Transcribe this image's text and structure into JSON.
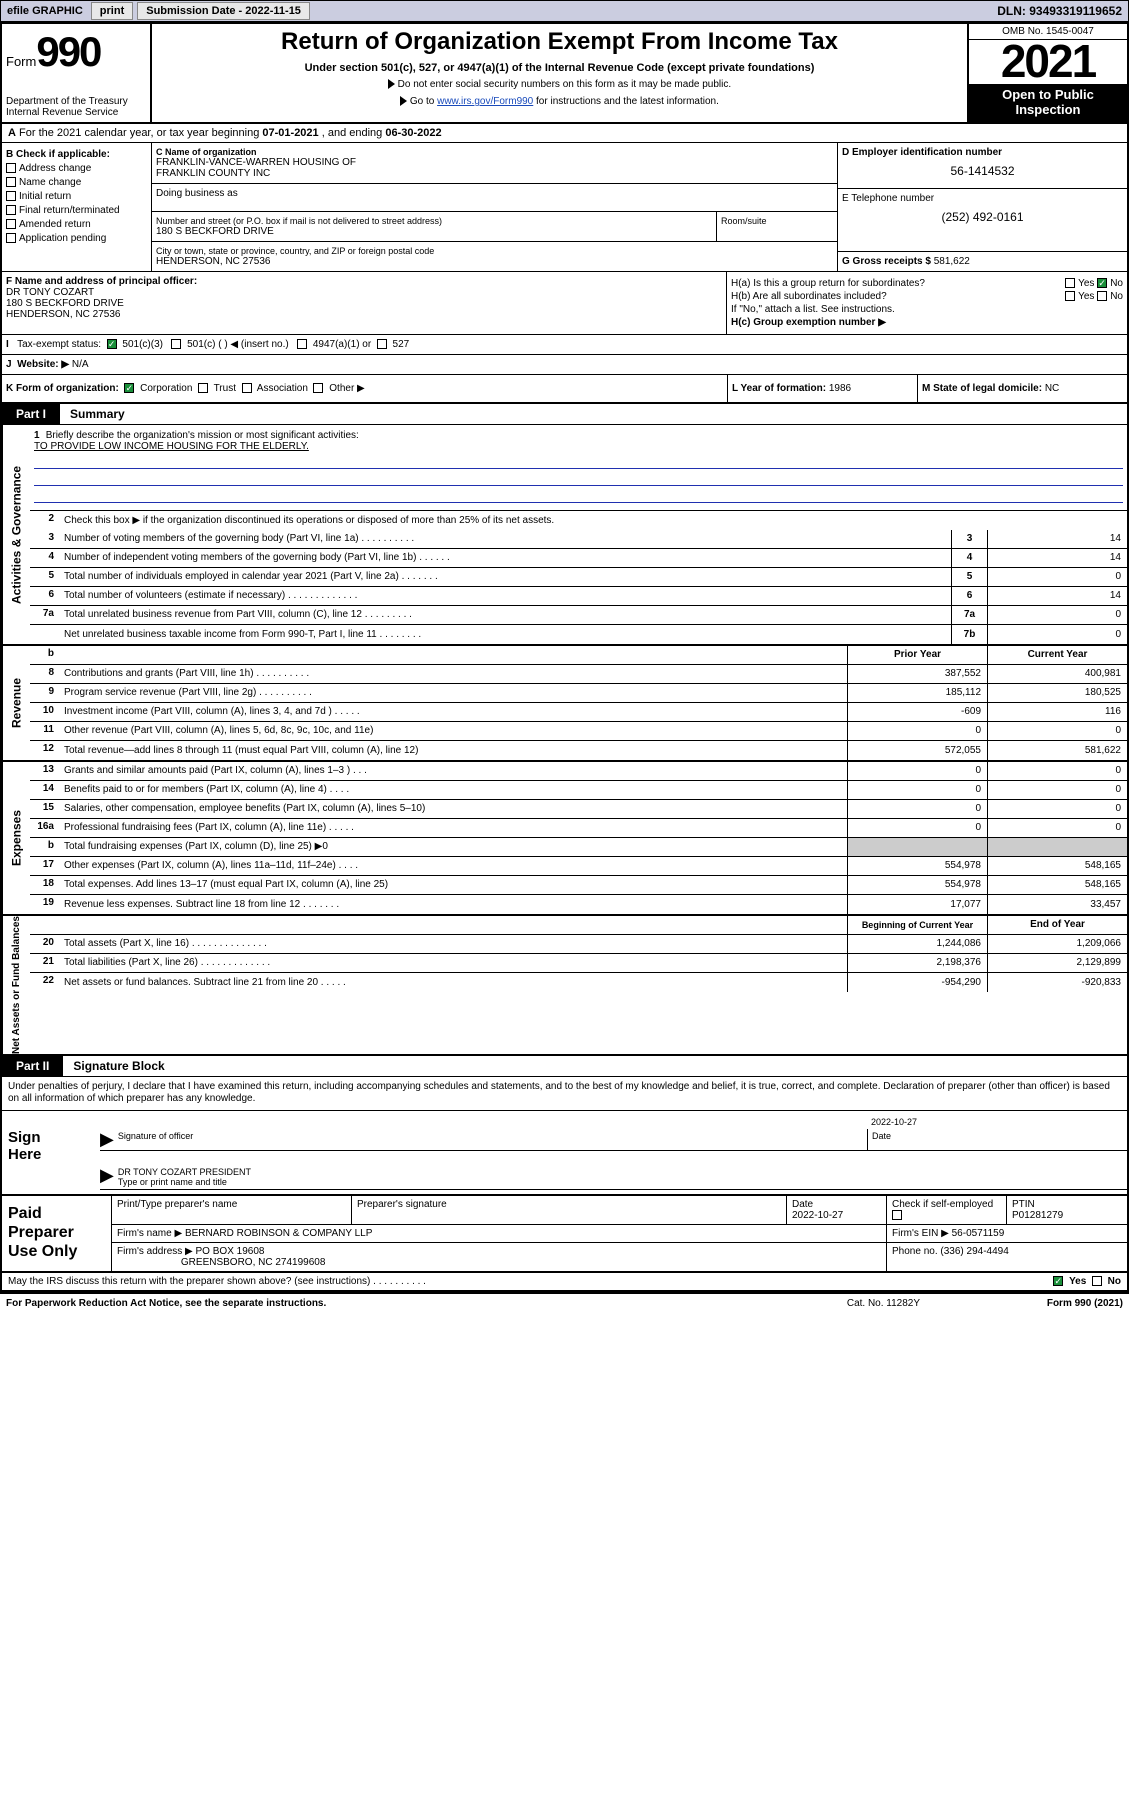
{
  "topbar": {
    "efile_label": "efile GRAPHIC",
    "print_btn": "print",
    "sub_label": "Submission Date - 2022-11-15",
    "dln": "DLN: 93493319119652"
  },
  "header": {
    "form_word": "Form",
    "form_num": "990",
    "dept": "Department of the Treasury",
    "irs": "Internal Revenue Service",
    "title": "Return of Organization Exempt From Income Tax",
    "sub1": "Under section 501(c), 527, or 4947(a)(1) of the Internal Revenue Code (except private foundations)",
    "sub2": "Do not enter social security numbers on this form as it may be made public.",
    "sub3_pre": "Go to ",
    "sub3_link": "www.irs.gov/Form990",
    "sub3_post": " for instructions and the latest information.",
    "omb": "OMB No. 1545-0047",
    "year": "2021",
    "open": "Open to Public Inspection"
  },
  "rowA": {
    "text_pre": "For the 2021 calendar year, or tax year beginning ",
    "begin": "07-01-2021",
    "mid": " , and ending ",
    "end": "06-30-2022"
  },
  "colB": {
    "label": "B Check if applicable:",
    "items": [
      "Address change",
      "Name change",
      "Initial return",
      "Final return/terminated",
      "Amended return",
      "Application pending"
    ]
  },
  "nameBox": {
    "c_label": "C Name of organization",
    "name1": "FRANKLIN-VANCE-WARREN HOUSING OF",
    "name2": "FRANKLIN COUNTY INC",
    "dba_label": "Doing business as"
  },
  "addr": {
    "street_label": "Number and street (or P.O. box if mail is not delivered to street address)",
    "street": "180 S BECKFORD DRIVE",
    "room_label": "Room/suite",
    "city_label": "City or town, state or province, country, and ZIP or foreign postal code",
    "city": "HENDERSON, NC  27536"
  },
  "colDE": {
    "d_label": "D Employer identification number",
    "d_val": "56-1414532",
    "e_label": "E Telephone number",
    "e_val": "(252) 492-0161",
    "g_label": "G Gross receipts $",
    "g_val": "581,622"
  },
  "rowF": {
    "label": "F Name and address of principal officer:",
    "l1": "DR TONY COZART",
    "l2": "180 S BECKFORD DRIVE",
    "l3": "HENDERSON, NC  27536"
  },
  "rowH": {
    "ha": "H(a)  Is this a group return for subordinates?",
    "hb": "H(b)  Are all subordinates included?",
    "hb2": "If \"No,\" attach a list. See instructions.",
    "hc": "H(c)  Group exemption number ▶",
    "yes": "Yes",
    "no": "No"
  },
  "rowI": {
    "label": "Tax-exempt status:",
    "o1": "501(c)(3)",
    "o2": "501(c) (  ) ◀ (insert no.)",
    "o3": "4947(a)(1) or",
    "o4": "527"
  },
  "rowJ": {
    "label": "Website: ▶",
    "val": "N/A"
  },
  "rowK": {
    "label": "K Form of organization:",
    "opts": [
      "Corporation",
      "Trust",
      "Association",
      "Other ▶"
    ],
    "l_label": "L Year of formation:",
    "l_val": "1986",
    "m_label": "M State of legal domicile:",
    "m_val": "NC"
  },
  "part1": {
    "tag": "Part I",
    "title": "Summary"
  },
  "briefly": {
    "num": "1",
    "q": "Briefly describe the organization's mission or most significant activities:",
    "ans": "TO PROVIDE LOW INCOME HOUSING FOR THE ELDERLY."
  },
  "govLines": {
    "l2": "Check this box ▶       if the organization discontinued its operations or disposed of more than 25% of its net assets.",
    "rows": [
      {
        "n": "3",
        "t": "Number of voting members of the governing body (Part VI, line 1a)  .    .    .    .    .    .    .    .    .    .",
        "b": "3",
        "v": "14"
      },
      {
        "n": "4",
        "t": "Number of independent voting members of the governing body (Part VI, line 1b)  .    .    .    .    .    .",
        "b": "4",
        "v": "14"
      },
      {
        "n": "5",
        "t": "Total number of individuals employed in calendar year 2021 (Part V, line 2a)  .    .    .    .    .    .    .",
        "b": "5",
        "v": "0"
      },
      {
        "n": "6",
        "t": "Total number of volunteers (estimate if necessary)  .    .    .    .    .    .    .    .    .    .    .    .    .",
        "b": "6",
        "v": "14"
      },
      {
        "n": "7a",
        "t": "Total unrelated business revenue from Part VIII, column (C), line 12  .    .    .    .    .    .    .    .    .",
        "b": "7a",
        "v": "0"
      },
      {
        "n": "",
        "t": "Net unrelated business taxable income from Form 990-T, Part I, line 11  .    .    .    .    .    .    .    .",
        "b": "7b",
        "v": "0"
      }
    ]
  },
  "twoColHdr": {
    "n": "b",
    "prior": "Prior Year",
    "curr": "Current Year"
  },
  "revenue": [
    {
      "n": "8",
      "t": "Contributions and grants (Part VIII, line 1h)  .    .    .    .    .    .    .    .    .    .",
      "p": "387,552",
      "c": "400,981"
    },
    {
      "n": "9",
      "t": "Program service revenue (Part VIII, line 2g)  .    .    .    .    .    .    .    .    .    .",
      "p": "185,112",
      "c": "180,525"
    },
    {
      "n": "10",
      "t": "Investment income (Part VIII, column (A), lines 3, 4, and 7d )  .    .    .    .    .",
      "p": "-609",
      "c": "116"
    },
    {
      "n": "11",
      "t": "Other revenue (Part VIII, column (A), lines 5, 6d, 8c, 9c, 10c, and 11e)",
      "p": "0",
      "c": "0"
    },
    {
      "n": "12",
      "t": "Total revenue—add lines 8 through 11 (must equal Part VIII, column (A), line 12)",
      "p": "572,055",
      "c": "581,622"
    }
  ],
  "expenses": [
    {
      "n": "13",
      "t": "Grants and similar amounts paid (Part IX, column (A), lines 1–3 )  .    .    .",
      "p": "0",
      "c": "0"
    },
    {
      "n": "14",
      "t": "Benefits paid to or for members (Part IX, column (A), line 4)  .    .    .    .",
      "p": "0",
      "c": "0"
    },
    {
      "n": "15",
      "t": "Salaries, other compensation, employee benefits (Part IX, column (A), lines 5–10)",
      "p": "0",
      "c": "0"
    },
    {
      "n": "16a",
      "t": "Professional fundraising fees (Part IX, column (A), line 11e)  .    .    .    .    .",
      "p": "0",
      "c": "0"
    },
    {
      "n": "b",
      "t": "Total fundraising expenses (Part IX, column (D), line 25) ▶0",
      "p": "",
      "c": "",
      "shade": true
    },
    {
      "n": "17",
      "t": "Other expenses (Part IX, column (A), lines 11a–11d, 11f–24e)  .    .    .    .",
      "p": "554,978",
      "c": "548,165"
    },
    {
      "n": "18",
      "t": "Total expenses. Add lines 13–17 (must equal Part IX, column (A), line 25)",
      "p": "554,978",
      "c": "548,165"
    },
    {
      "n": "19",
      "t": "Revenue less expenses. Subtract line 18 from line 12  .    .    .    .    .    .    .",
      "p": "17,077",
      "c": "33,457"
    }
  ],
  "netHdr": {
    "prior": "Beginning of Current Year",
    "curr": "End of Year"
  },
  "netassets": [
    {
      "n": "20",
      "t": "Total assets (Part X, line 16)  .    .    .    .    .    .    .    .    .    .    .    .    .    .",
      "p": "1,244,086",
      "c": "1,209,066"
    },
    {
      "n": "21",
      "t": "Total liabilities (Part X, line 26)  .    .    .    .    .    .    .    .    .    .    .    .    .",
      "p": "2,198,376",
      "c": "2,129,899"
    },
    {
      "n": "22",
      "t": "Net assets or fund balances. Subtract line 21 from line 20  .    .    .    .    .",
      "p": "-954,290",
      "c": "-920,833"
    }
  ],
  "part2": {
    "tag": "Part II",
    "title": "Signature Block"
  },
  "penalty": "Under penalties of perjury, I declare that I have examined this return, including accompanying schedules and statements, and to the best of my knowledge and belief, it is true, correct, and complete. Declaration of preparer (other than officer) is based on all information of which preparer has any knowledge.",
  "sign": {
    "here": "Sign Here",
    "sig_label": "Signature of officer",
    "date": "2022-10-27",
    "date_label": "Date",
    "name": "DR TONY COZART PRESIDENT",
    "name_label": "Type or print name and title"
  },
  "paid": {
    "title": "Paid Preparer Use Only",
    "h1": "Print/Type preparer's name",
    "h2": "Preparer's signature",
    "h3": "Date",
    "h4": "Check        if self-employed",
    "h5": "PTIN",
    "date": "2022-10-27",
    "ptin": "P01281279",
    "firm_label": "Firm's name    ▶",
    "firm": "BERNARD ROBINSON & COMPANY LLP",
    "ein_label": "Firm's EIN ▶",
    "ein": "56-0571159",
    "addr_label": "Firm's address ▶",
    "addr1": "PO BOX 19608",
    "addr2": "GREENSBORO, NC  274199608",
    "phone_label": "Phone no.",
    "phone": "(336) 294-4494"
  },
  "footer": {
    "discuss": "May the IRS discuss this return with the preparer shown above? (see instructions)  .    .    .    .    .    .    .    .    .    .",
    "yes": "Yes",
    "no": "No",
    "paperwork": "For Paperwork Reduction Act Notice, see the separate instructions.",
    "cat": "Cat. No. 11282Y",
    "form": "Form 990 (2021)"
  },
  "sideLabels": {
    "gov": "Activities & Governance",
    "rev": "Revenue",
    "exp": "Expenses",
    "net": "Net Assets or Fund Balances"
  }
}
